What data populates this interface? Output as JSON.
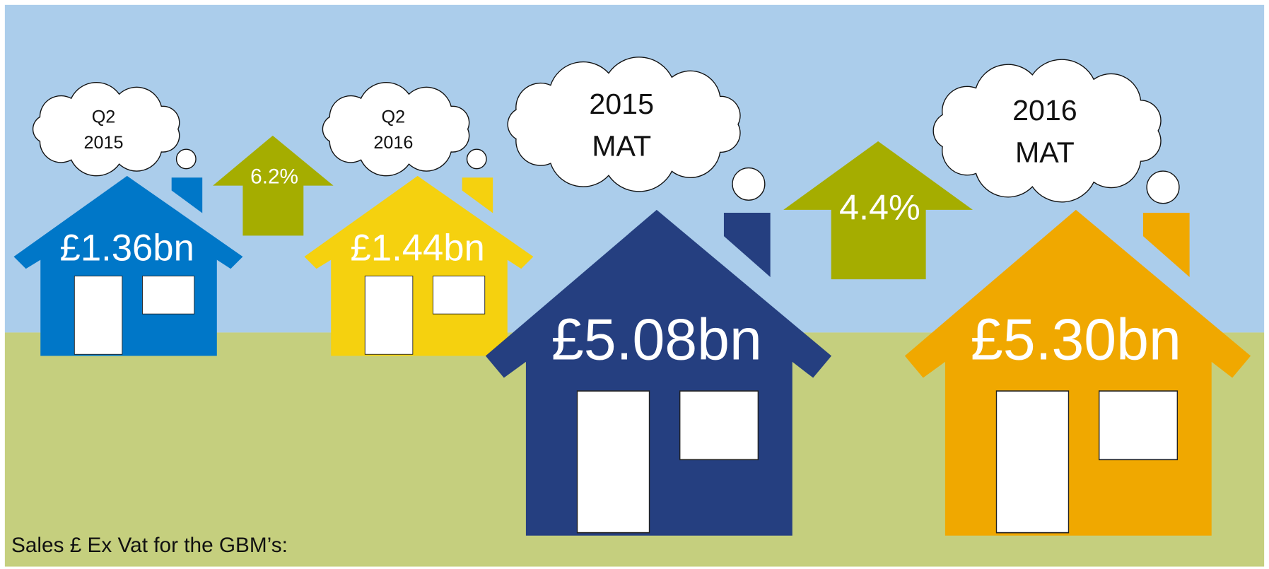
{
  "caption": "Sales £ Ex Vat for the GBM’s:",
  "houses": [
    {
      "period": [
        "Q2",
        "2015"
      ],
      "value": "£1.36bn"
    },
    {
      "period": [
        "Q2",
        "2016"
      ],
      "value": "£1.44bn"
    },
    {
      "period": [
        "2015",
        "MAT"
      ],
      "value": "£5.08bn"
    },
    {
      "period": [
        "2016",
        "MAT"
      ],
      "value": "£5.30bn"
    }
  ],
  "growth": [
    "6.2%",
    "4.4%"
  ]
}
